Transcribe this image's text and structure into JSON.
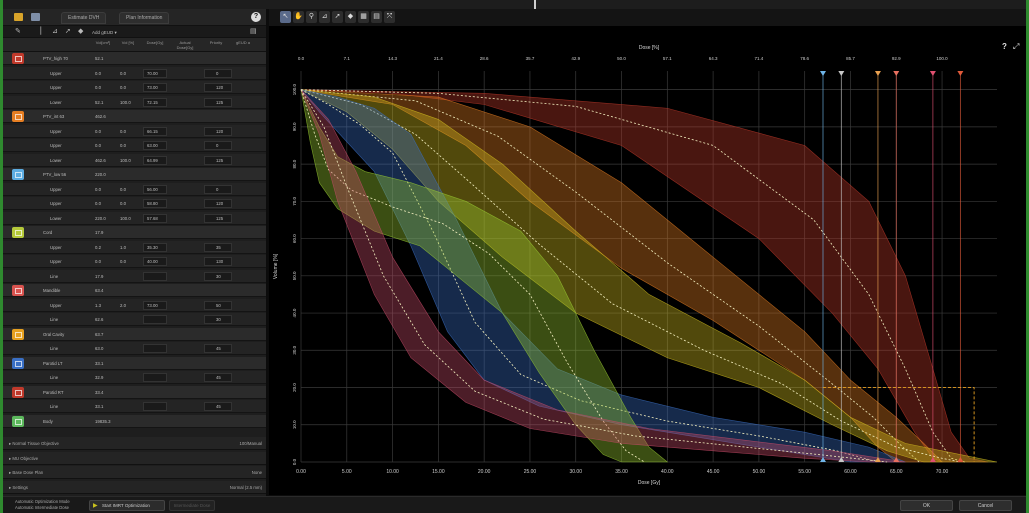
{
  "header_tabs": [
    "Estimate DVH",
    "Plan Information"
  ],
  "help": "?",
  "left_toolbar": {
    "selector": "Add gEUD ▾"
  },
  "columns": [
    "Vol[cm³]",
    "Vol [%]",
    "Dose[Gy]",
    "Actual Dose[Gy]",
    "Priority",
    "gEUD a"
  ],
  "structures": [
    {
      "name": "PTV_high 70",
      "color": "#c0392b",
      "volume": "52.1",
      "objectives": [
        {
          "type": "Upper",
          "vol": "0.0",
          "volpct": "0.0",
          "dose": "70.00",
          "priority": "0"
        },
        {
          "type": "Upper",
          "vol": "0.0",
          "volpct": "0.0",
          "dose": "73.00",
          "priority": "120"
        },
        {
          "type": "Lower",
          "vol": "52.1",
          "volpct": "100.0",
          "dose": "72.15",
          "priority": "125"
        }
      ]
    },
    {
      "name": "PTV_int 63",
      "color": "#e67e22",
      "volume": "462.6",
      "objectives": [
        {
          "type": "Upper",
          "vol": "0.0",
          "volpct": "0.0",
          "dose": "66.15",
          "priority": "120"
        },
        {
          "type": "Upper",
          "vol": "0.0",
          "volpct": "0.0",
          "dose": "63.00",
          "priority": "0"
        },
        {
          "type": "Lower",
          "vol": "462.6",
          "volpct": "100.0",
          "dose": "64.99",
          "priority": "125"
        }
      ]
    },
    {
      "name": "PTV_low 56",
      "color": "#5dade2",
      "volume": "220.0",
      "objectives": [
        {
          "type": "Upper",
          "vol": "0.0",
          "volpct": "0.0",
          "dose": "56.00",
          "priority": "0"
        },
        {
          "type": "Upper",
          "vol": "0.0",
          "volpct": "0.0",
          "dose": "58.80",
          "priority": "120"
        },
        {
          "type": "Lower",
          "vol": "220.0",
          "volpct": "100.0",
          "dose": "57.68",
          "priority": "125"
        }
      ]
    },
    {
      "name": "Cord",
      "color": "#b5c93a",
      "volume": "17.9",
      "objectives": [
        {
          "type": "Upper",
          "vol": "0.2",
          "volpct": "1.0",
          "dose": "35.30",
          "priority": "35"
        },
        {
          "type": "Upper",
          "vol": "0.0",
          "volpct": "0.0",
          "dose": "40.00",
          "priority": "130"
        },
        {
          "type": "Line",
          "vol": "17.9",
          "volpct": "",
          "dose": "",
          "priority": "30"
        }
      ]
    },
    {
      "name": "Mandible",
      "color": "#d9534f",
      "volume": "63.4",
      "objectives": [
        {
          "type": "Upper",
          "vol": "1.3",
          "volpct": "2.0",
          "dose": "73.00",
          "priority": "50"
        },
        {
          "type": "Line",
          "vol": "62.6",
          "volpct": "",
          "dose": "",
          "priority": "30"
        }
      ]
    },
    {
      "name": "Oral Cavity",
      "color": "#e6a020",
      "volume": "63.7",
      "objectives": [
        {
          "type": "Line",
          "vol": "63.0",
          "volpct": "",
          "dose": "",
          "priority": "45"
        }
      ]
    },
    {
      "name": "Parotid LT",
      "color": "#3a6fc4",
      "volume": "33.1",
      "objectives": [
        {
          "type": "Line",
          "vol": "32.9",
          "volpct": "",
          "dose": "",
          "priority": "45"
        }
      ]
    },
    {
      "name": "Parotid RT",
      "color": "#c0392b",
      "volume": "33.4",
      "objectives": [
        {
          "type": "Line",
          "vol": "33.1",
          "volpct": "",
          "dose": "",
          "priority": "45"
        }
      ]
    },
    {
      "name": "Body",
      "color": "#5cb85c",
      "volume": "19835.3",
      "objectives": []
    }
  ],
  "sections": [
    {
      "label": "Normal Tissue Objective",
      "value": "100/Manual"
    },
    {
      "label": "MU Objective",
      "value": ""
    },
    {
      "label": "Base Dose Plan",
      "value": "None"
    },
    {
      "label": "Settings",
      "value": "Normal (2.5 mm)"
    }
  ],
  "bottom": {
    "mode_line1": "Automatic Optimization Mode",
    "mode_line2": "Automatic Intermediate Dose",
    "start_label": "Start IMRT Optimization",
    "intermediate_label": "Intermediate Dose",
    "ok_label": "OK",
    "cancel_label": "Cancel"
  },
  "chart_data": {
    "type": "area",
    "top_axis_label": "Dose [%]",
    "top_ticks": [
      "0.0",
      "7.1",
      "14.3",
      "21.4",
      "28.6",
      "35.7",
      "42.9",
      "50.0",
      "57.1",
      "64.3",
      "71.4",
      "78.6",
      "85.7",
      "92.9",
      "100.0"
    ],
    "xlabel": "Dose [Gy]",
    "x_ticks": [
      "0.00",
      "5.00",
      "10.00",
      "15.00",
      "20.00",
      "25.00",
      "30.00",
      "35.00",
      "40.00",
      "45.00",
      "50.00",
      "55.00",
      "60.00",
      "65.00",
      "70.00"
    ],
    "ylabel": "Volume [%]",
    "y_ticks": [
      "0.0",
      "10.0",
      "20.0",
      "30.0",
      "40.0",
      "50.0",
      "60.0",
      "70.0",
      "80.0",
      "90.0",
      "100.0"
    ],
    "xlim": [
      0,
      76
    ],
    "ylim": [
      0,
      105
    ],
    "grid": true,
    "series": [
      {
        "color": "#c0392b",
        "upper": [
          [
            0,
            100
          ],
          [
            20,
            99
          ],
          [
            40,
            95
          ],
          [
            55,
            85
          ],
          [
            62,
            70
          ],
          [
            66,
            50
          ],
          [
            69,
            25
          ],
          [
            71,
            8
          ],
          [
            73,
            1
          ],
          [
            75,
            0
          ]
        ],
        "lower": [
          [
            0,
            100
          ],
          [
            10,
            99
          ],
          [
            20,
            96
          ],
          [
            35,
            85
          ],
          [
            50,
            60
          ],
          [
            58,
            40
          ],
          [
            63,
            25
          ],
          [
            67,
            8
          ],
          [
            69,
            1
          ],
          [
            70,
            0
          ]
        ]
      },
      {
        "color": "#e67e22",
        "upper": [
          [
            0,
            100
          ],
          [
            15,
            98
          ],
          [
            25,
            90
          ],
          [
            35,
            75
          ],
          [
            45,
            55
          ],
          [
            55,
            35
          ],
          [
            60,
            22
          ],
          [
            65,
            12
          ],
          [
            68,
            5
          ],
          [
            70,
            0
          ]
        ],
        "lower": [
          [
            0,
            100
          ],
          [
            10,
            96
          ],
          [
            18,
            85
          ],
          [
            25,
            70
          ],
          [
            35,
            52
          ],
          [
            45,
            38
          ],
          [
            55,
            22
          ],
          [
            60,
            12
          ],
          [
            63,
            4
          ],
          [
            65,
            0
          ]
        ]
      },
      {
        "color": "#d4c020",
        "upper": [
          [
            0,
            100
          ],
          [
            8,
            98
          ],
          [
            15,
            92
          ],
          [
            22,
            80
          ],
          [
            30,
            62
          ],
          [
            38,
            45
          ],
          [
            48,
            32
          ],
          [
            55,
            22
          ],
          [
            60,
            12
          ],
          [
            66,
            5
          ],
          [
            72,
            2
          ],
          [
            76,
            0
          ]
        ],
        "lower": [
          [
            0,
            100
          ],
          [
            5,
            94
          ],
          [
            10,
            84
          ],
          [
            15,
            70
          ],
          [
            22,
            55
          ],
          [
            30,
            40
          ],
          [
            40,
            28
          ],
          [
            50,
            20
          ],
          [
            58,
            10
          ],
          [
            64,
            3
          ],
          [
            68,
            0
          ]
        ]
      },
      {
        "color": "#3a6fc4",
        "upper": [
          [
            0,
            100
          ],
          [
            4,
            98
          ],
          [
            8,
            95
          ],
          [
            12,
            88
          ],
          [
            17,
            65
          ],
          [
            22,
            40
          ],
          [
            28,
            25
          ],
          [
            35,
            18
          ],
          [
            45,
            12
          ],
          [
            55,
            8
          ],
          [
            62,
            4
          ],
          [
            66,
            0
          ]
        ],
        "lower": [
          [
            0,
            100
          ],
          [
            2,
            94
          ],
          [
            5,
            86
          ],
          [
            8,
            78
          ],
          [
            12,
            58
          ],
          [
            16,
            35
          ],
          [
            20,
            22
          ],
          [
            26,
            15
          ],
          [
            35,
            10
          ],
          [
            45,
            6
          ],
          [
            55,
            2
          ],
          [
            60,
            0
          ]
        ]
      },
      {
        "color": "#9acd32",
        "upper": [
          [
            0,
            100
          ],
          [
            2,
            90
          ],
          [
            4,
            82
          ],
          [
            7,
            78
          ],
          [
            12,
            75
          ],
          [
            18,
            70
          ],
          [
            24,
            62
          ],
          [
            28,
            50
          ],
          [
            32,
            30
          ],
          [
            36,
            12
          ],
          [
            38,
            4
          ],
          [
            40,
            0
          ]
        ],
        "lower": [
          [
            0,
            100
          ],
          [
            1,
            86
          ],
          [
            2,
            75
          ],
          [
            4,
            68
          ],
          [
            8,
            62
          ],
          [
            13,
            58
          ],
          [
            17,
            50
          ],
          [
            22,
            40
          ],
          [
            26,
            24
          ],
          [
            30,
            10
          ],
          [
            33,
            2
          ],
          [
            35,
            0
          ]
        ]
      },
      {
        "color": "#c94c6a",
        "upper": [
          [
            0,
            100
          ],
          [
            3,
            92
          ],
          [
            6,
            78
          ],
          [
            10,
            55
          ],
          [
            15,
            35
          ],
          [
            20,
            22
          ],
          [
            28,
            14
          ],
          [
            38,
            9
          ],
          [
            48,
            6
          ],
          [
            58,
            3
          ],
          [
            66,
            0
          ]
        ],
        "lower": [
          [
            0,
            100
          ],
          [
            2,
            88
          ],
          [
            4,
            70
          ],
          [
            8,
            45
          ],
          [
            12,
            28
          ],
          [
            18,
            16
          ],
          [
            25,
            9
          ],
          [
            35,
            5
          ],
          [
            45,
            3
          ],
          [
            55,
            1
          ],
          [
            62,
            0
          ]
        ]
      }
    ],
    "ref_lines_x": [
      57,
      59,
      63,
      65,
      69,
      72
    ],
    "threshold_box": {
      "x": 57,
      "x2": 73.5,
      "y": 20
    }
  }
}
